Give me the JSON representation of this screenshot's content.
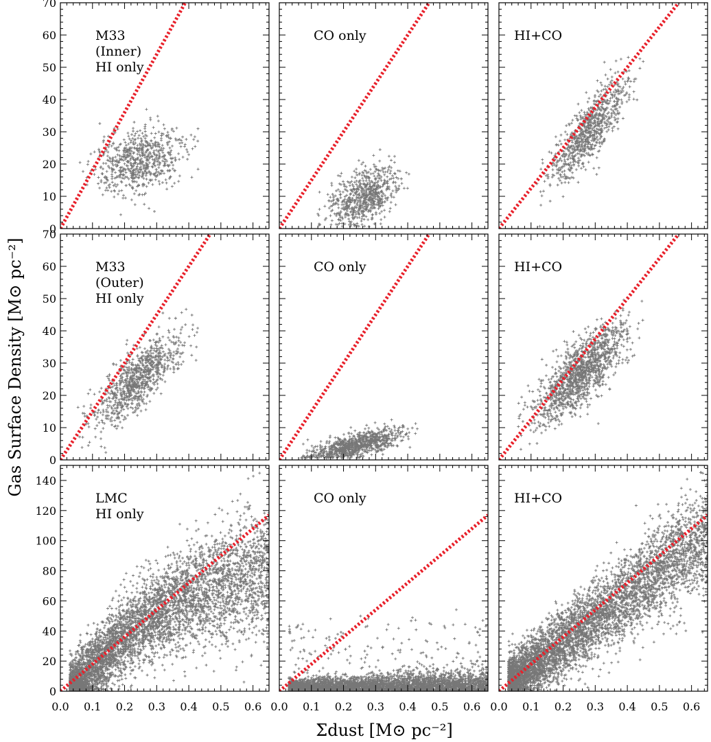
{
  "figure": {
    "ylabel": "Gas Surface Density [M⊙ pc⁻²]",
    "xlabel": "Σdust [M⊙ pc⁻²]"
  },
  "chart_data": [
    {
      "type": "scatter",
      "row": 0,
      "col": 0,
      "label_lines": [
        "M33",
        "(Inner)",
        "HI only"
      ],
      "xlim": [
        0,
        0.65
      ],
      "ylim": [
        0,
        70
      ],
      "xticks": [
        "0.0",
        "0.1",
        "0.2",
        "0.3",
        "0.4",
        "0.5",
        "0.6"
      ],
      "yticks": [
        "0",
        "10",
        "20",
        "30",
        "40",
        "50",
        "60",
        "70"
      ],
      "line": {
        "slope": 180,
        "style": "dotted",
        "color": "#e8202a"
      },
      "point_cloud": {
        "n": 700,
        "x_range": [
          0.06,
          0.43
        ],
        "y_center": 21,
        "y_slope": 22,
        "y_spread": 5,
        "color": "#777777"
      }
    },
    {
      "type": "scatter",
      "row": 0,
      "col": 1,
      "label_lines": [
        "CO only"
      ],
      "xlim": [
        0,
        0.65
      ],
      "ylim": [
        0,
        70
      ],
      "xticks": [
        "0.0",
        "0.1",
        "0.2",
        "0.3",
        "0.4",
        "0.5",
        "0.6"
      ],
      "yticks": [],
      "line": {
        "slope": 150,
        "style": "dotted",
        "color": "#e8202a"
      },
      "point_cloud": {
        "n": 700,
        "x_range": [
          0.12,
          0.41
        ],
        "y_center": 10,
        "y_slope": 40,
        "y_spread": 4,
        "color": "#777777"
      }
    },
    {
      "type": "scatter",
      "row": 0,
      "col": 2,
      "label_lines": [
        "HI+CO"
      ],
      "xlim": [
        0,
        0.65
      ],
      "ylim": [
        0,
        70
      ],
      "xticks": [
        "0.0",
        "0.1",
        "0.2",
        "0.3",
        "0.4",
        "0.5",
        "0.6"
      ],
      "yticks": [],
      "line": {
        "slope": 125,
        "style": "dotted",
        "color": "#e8202a"
      },
      "point_cloud": {
        "n": 800,
        "x_range": [
          0.11,
          0.45
        ],
        "y_center": 30,
        "y_slope": 110,
        "y_spread": 4.5,
        "color": "#777777"
      }
    },
    {
      "type": "scatter",
      "row": 1,
      "col": 0,
      "label_lines": [
        "M33",
        "(Outer)",
        "HI only"
      ],
      "xlim": [
        0,
        0.65
      ],
      "ylim": [
        0,
        70
      ],
      "xticks": [
        "0.0",
        "0.1",
        "0.2",
        "0.3",
        "0.4",
        "0.5",
        "0.6"
      ],
      "yticks": [
        "0",
        "10",
        "20",
        "30",
        "40",
        "50",
        "60",
        "70"
      ],
      "line": {
        "slope": 150,
        "style": "dotted",
        "color": "#e8202a"
      },
      "point_cloud": {
        "n": 900,
        "x_range": [
          0.05,
          0.43
        ],
        "y_center": 25,
        "y_slope": 80,
        "y_spread": 4.5,
        "color": "#777777"
      }
    },
    {
      "type": "scatter",
      "row": 1,
      "col": 1,
      "label_lines": [
        "CO only"
      ],
      "xlim": [
        0,
        0.65
      ],
      "ylim": [
        0,
        70
      ],
      "xticks": [
        "0.0",
        "0.1",
        "0.2",
        "0.3",
        "0.4",
        "0.5",
        "0.6"
      ],
      "yticks": [],
      "line": {
        "slope": 150,
        "style": "dotted",
        "color": "#e8202a"
      },
      "point_cloud": {
        "n": 900,
        "x_range": [
          0.05,
          0.43
        ],
        "y_center": 4.5,
        "y_slope": 22,
        "y_spread": 1.8,
        "color": "#777777"
      }
    },
    {
      "type": "scatter",
      "row": 1,
      "col": 2,
      "label_lines": [
        "HI+CO"
      ],
      "xlim": [
        0,
        0.65
      ],
      "ylim": [
        0,
        70
      ],
      "xticks": [
        "0.0",
        "0.1",
        "0.2",
        "0.3",
        "0.4",
        "0.5",
        "0.6"
      ],
      "yticks": [],
      "line": {
        "slope": 125,
        "style": "dotted",
        "color": "#e8202a"
      },
      "point_cloud": {
        "n": 1300,
        "x_range": [
          0.06,
          0.45
        ],
        "y_center": 27,
        "y_slope": 85,
        "y_spread": 5,
        "color": "#777777"
      }
    },
    {
      "type": "scatter",
      "row": 2,
      "col": 0,
      "label_lines": [
        "LMC",
        "HI only"
      ],
      "xlim": [
        0,
        0.65
      ],
      "ylim": [
        0,
        150
      ],
      "xticks": [
        "0.0",
        "0.1",
        "0.2",
        "0.3",
        "0.4",
        "0.5",
        "0.6"
      ],
      "yticks": [
        "0",
        "20",
        "40",
        "60",
        "80",
        "100",
        "120",
        "140"
      ],
      "line": {
        "slope": 180,
        "style": "dotted",
        "color": "#e8202a"
      },
      "point_cloud": {
        "n": 5000,
        "x_range": [
          0.03,
          0.65
        ],
        "y_curve": "saturating",
        "y_spread": 9,
        "color": "#777777"
      }
    },
    {
      "type": "scatter",
      "row": 2,
      "col": 1,
      "label_lines": [
        "CO only"
      ],
      "xlim": [
        0,
        0.65
      ],
      "ylim": [
        0,
        150
      ],
      "xticks": [
        "0.0",
        "0.1",
        "0.2",
        "0.3",
        "0.4",
        "0.5",
        "0.6"
      ],
      "yticks": [],
      "line": {
        "slope": 180,
        "style": "dotted",
        "color": "#e8202a"
      },
      "point_cloud": {
        "n": 4000,
        "x_range": [
          0.03,
          0.65
        ],
        "y_center": 3,
        "y_spread": 3,
        "color": "#777777"
      }
    },
    {
      "type": "scatter",
      "row": 2,
      "col": 2,
      "label_lines": [
        "HI+CO"
      ],
      "xlim": [
        0,
        0.65
      ],
      "ylim": [
        0,
        150
      ],
      "xticks": [
        "0.0",
        "0.1",
        "0.2",
        "0.3",
        "0.4",
        "0.5",
        "0.6"
      ],
      "yticks": [],
      "line": {
        "slope": 180,
        "style": "dotted",
        "color": "#e8202a"
      },
      "point_cloud": {
        "n": 5000,
        "x_range": [
          0.03,
          0.65
        ],
        "y_center": 18,
        "y_slope": 160,
        "y_spread": 9,
        "color": "#777777"
      }
    }
  ]
}
